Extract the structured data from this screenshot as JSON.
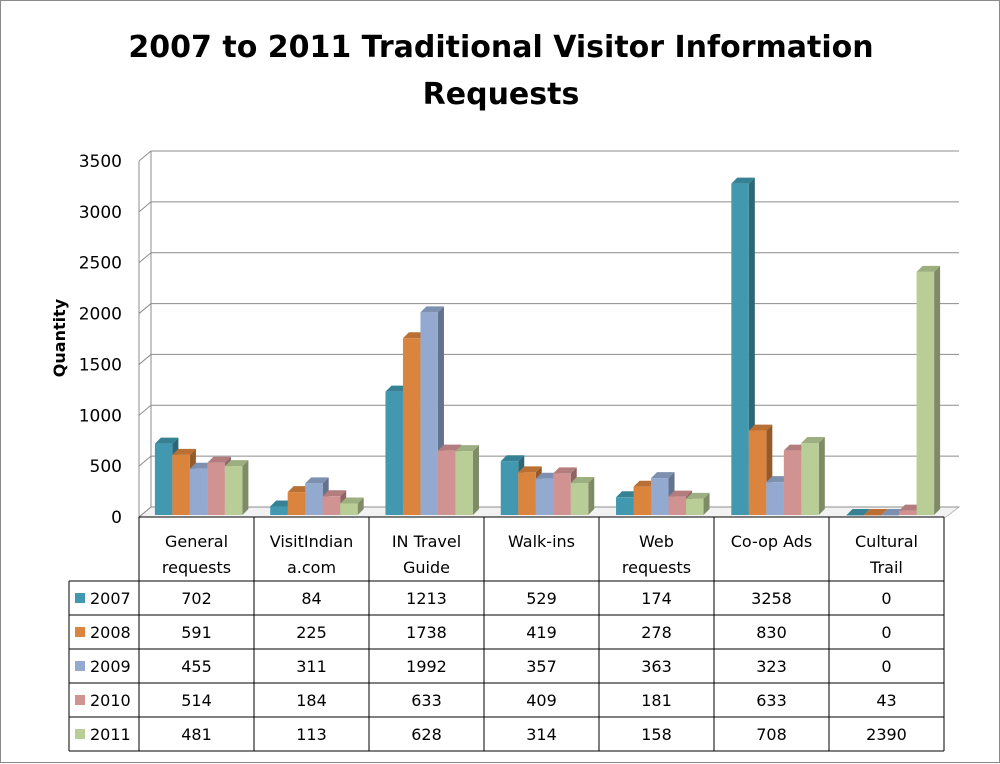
{
  "chart_data": {
    "type": "bar",
    "title": "2007 to 2011 Traditional Visitor Information Requests",
    "ylabel": "Quantity",
    "xlabel": "",
    "ylim": [
      0,
      3500
    ],
    "y_ticks": [
      "0",
      "500",
      "1000",
      "1500",
      "2000",
      "2500",
      "3000",
      "3500"
    ],
    "grid": true,
    "legend": "data table, left",
    "categories": [
      [
        "General",
        "requests"
      ],
      [
        "VisitIndian",
        "a.com"
      ],
      [
        "IN Travel",
        "Guide"
      ],
      [
        "Walk-ins"
      ],
      [
        "Web",
        "requests"
      ],
      [
        "Co-op Ads"
      ],
      [
        "Cultural",
        "Trail"
      ]
    ],
    "series": [
      {
        "name": "2007",
        "color": "#4198AF",
        "values": [
          702,
          84,
          1213,
          529,
          174,
          3258,
          0
        ]
      },
      {
        "name": "2008",
        "color": "#DB843D",
        "values": [
          591,
          225,
          1738,
          419,
          278,
          830,
          0
        ]
      },
      {
        "name": "2009",
        "color": "#93A9CF",
        "values": [
          455,
          311,
          1992,
          357,
          363,
          323,
          0
        ]
      },
      {
        "name": "2010",
        "color": "#D19392",
        "values": [
          514,
          184,
          633,
          409,
          181,
          633,
          43
        ]
      },
      {
        "name": "2011",
        "color": "#B9CD96",
        "values": [
          481,
          113,
          628,
          314,
          158,
          708,
          2390
        ]
      }
    ]
  }
}
